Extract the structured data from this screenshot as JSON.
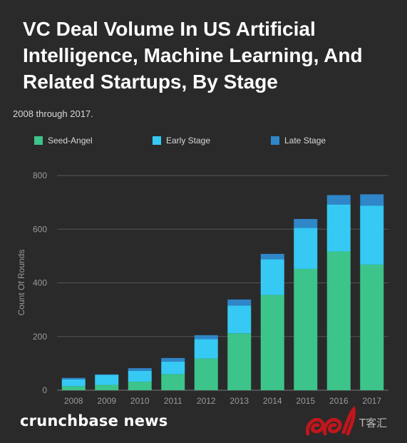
{
  "title": "VC Deal Volume In US Artificial Intelligence, Machine Learning, And Related Startups, By Stage",
  "subtitle": "2008 through 2017.",
  "footer": {
    "brand": "crunchbase news",
    "watermark_text": "T客汇"
  },
  "colors": {
    "background": "#2a2a2a",
    "seed": "#3cc48a",
    "early": "#35c9f4",
    "late": "#2f86c8",
    "grid": "#555555",
    "axis_text": "#9a9a9a",
    "watermark": "#c0161c"
  },
  "chart_data": {
    "type": "bar",
    "stacked": true,
    "title": "VC Deal Volume In US Artificial Intelligence, Machine Learning, And Related Startups, By Stage",
    "subtitle": "2008 through 2017.",
    "xlabel": "",
    "ylabel": "Count Of Rounds",
    "ylim": [
      0,
      800
    ],
    "yticks": [
      0,
      200,
      400,
      600,
      800
    ],
    "grid": true,
    "legend_position": "top-left",
    "categories": [
      "2008",
      "2009",
      "2010",
      "2011",
      "2012",
      "2013",
      "2014",
      "2015",
      "2016",
      "2017"
    ],
    "series": [
      {
        "name": "Seed-Angel",
        "color": "#3cc48a",
        "values": [
          15,
          20,
          32,
          60,
          118,
          212,
          355,
          452,
          517,
          468
        ]
      },
      {
        "name": "Early Stage",
        "color": "#35c9f4",
        "values": [
          25,
          37,
          40,
          47,
          72,
          103,
          133,
          153,
          175,
          220
        ]
      },
      {
        "name": "Late Stage",
        "color": "#2f86c8",
        "values": [
          6,
          2,
          10,
          13,
          15,
          23,
          20,
          33,
          35,
          42
        ]
      }
    ]
  }
}
